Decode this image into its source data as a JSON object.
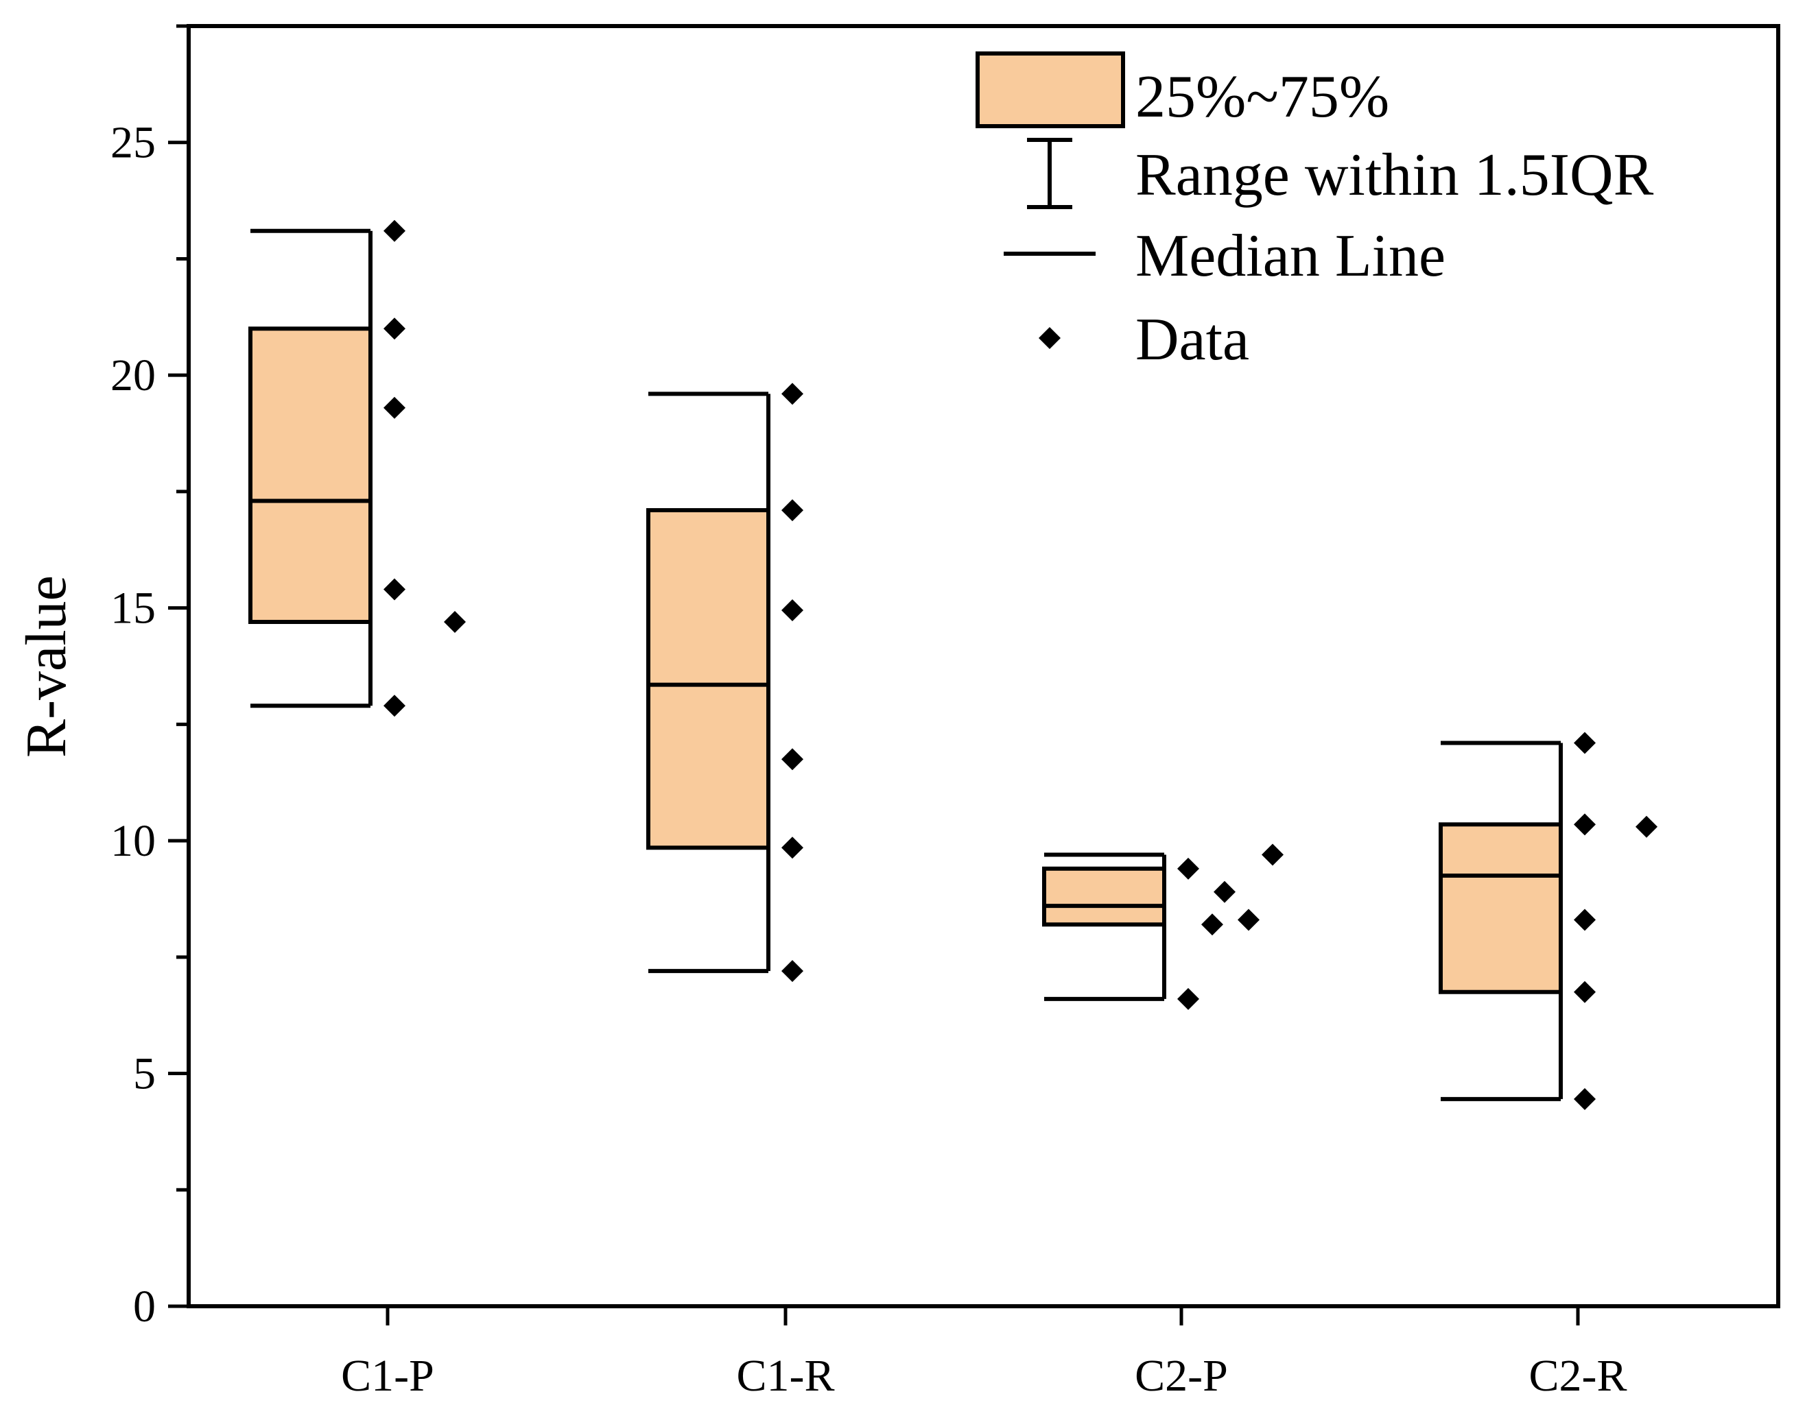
{
  "chart_data": {
    "type": "box",
    "title": "",
    "xlabel": "",
    "ylabel": "R-value",
    "ylim": [
      0,
      27.5
    ],
    "yticks": [
      0,
      5,
      10,
      15,
      20,
      25
    ],
    "ytick_labels": [
      "0",
      "5",
      "10",
      "15",
      "20",
      "25"
    ],
    "categories": [
      "C1-P",
      "C1-R",
      "C2-P",
      "C2-R"
    ],
    "grid": false,
    "legend_position": "top-right",
    "legend": {
      "box": "25%~75%",
      "whisker": "Range within 1.5IQR",
      "median": "Median Line",
      "data": "Data"
    },
    "colors": {
      "box_fill": "#F9CB9C",
      "stroke": "#000000"
    },
    "boxes": [
      {
        "category": "C1-P",
        "q1": 14.7,
        "median": 17.3,
        "q3": 21.0,
        "whisker_low": 12.9,
        "whisker_high": 23.1,
        "points": [
          23.1,
          21.0,
          19.3,
          15.4,
          14.7,
          12.9
        ]
      },
      {
        "category": "C1-R",
        "q1": 9.85,
        "median": 13.35,
        "q3": 17.1,
        "whisker_low": 7.2,
        "whisker_high": 19.6,
        "points": [
          19.6,
          17.1,
          14.95,
          11.75,
          9.85,
          7.2
        ]
      },
      {
        "category": "C2-P",
        "q1": 8.2,
        "median": 8.6,
        "q3": 9.4,
        "whisker_low": 6.6,
        "whisker_high": 9.7,
        "points": [
          9.4,
          6.6,
          8.2,
          8.9,
          8.3,
          9.7
        ]
      },
      {
        "category": "C2-R",
        "q1": 6.75,
        "median": 9.25,
        "q3": 10.35,
        "whisker_low": 4.45,
        "whisker_high": 12.1,
        "points": [
          12.1,
          10.35,
          8.3,
          6.75,
          4.45,
          10.3
        ]
      }
    ]
  }
}
